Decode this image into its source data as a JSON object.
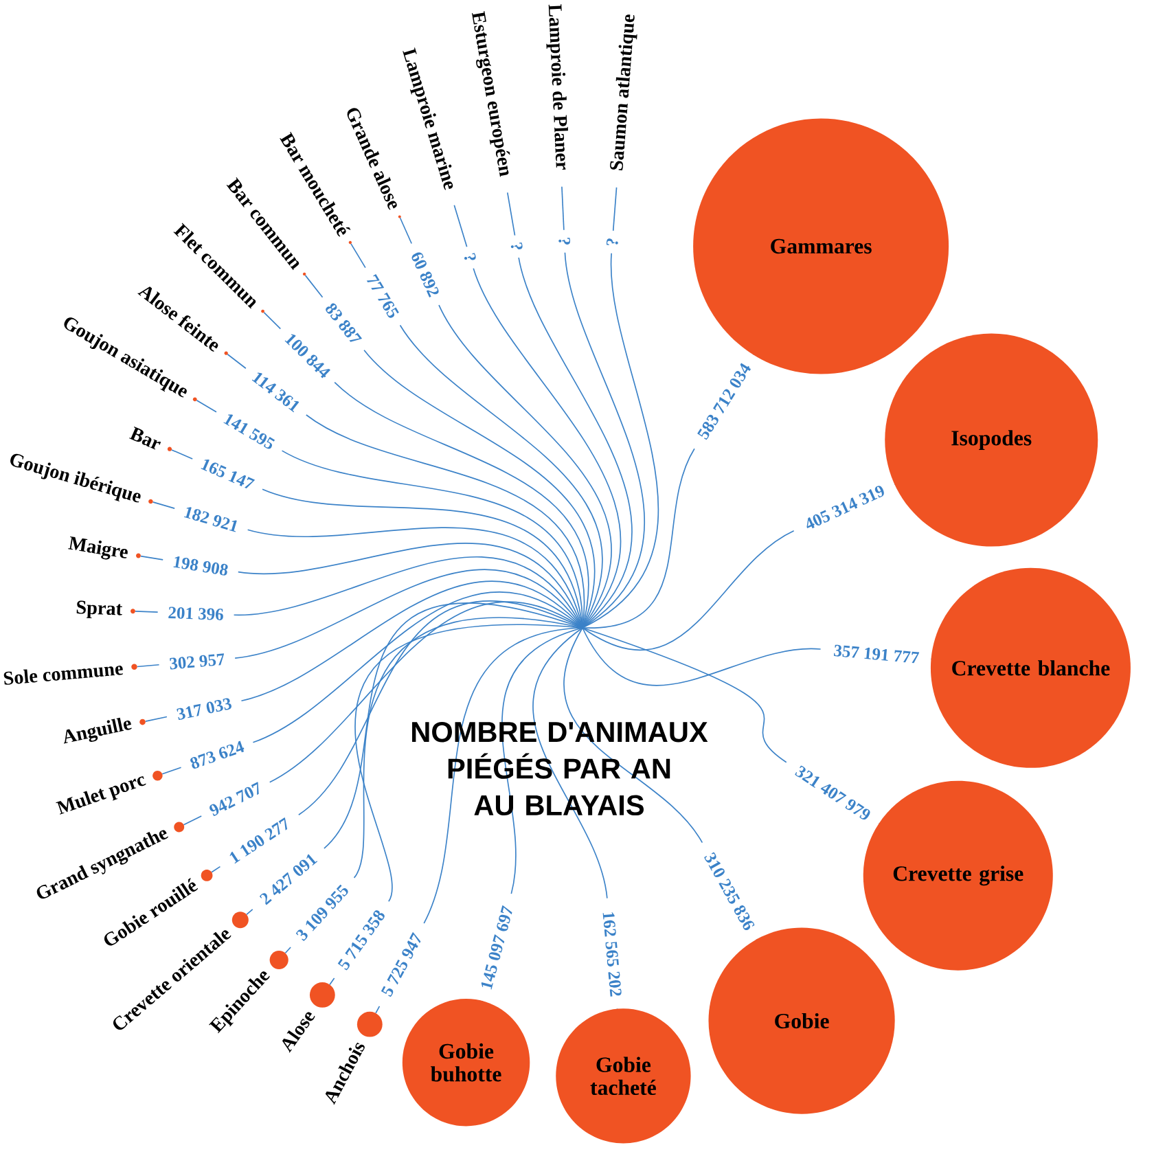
{
  "chart_data": {
    "type": "other",
    "title": "NOMBRE D'ANIMAUX PIÉGÉS PAR AN AU BLAYAIS",
    "color": "#f05323",
    "categories": [
      "Gammares",
      "Isopodes",
      "Crevette blanche",
      "Crevette grise",
      "Gobie",
      "Gobie tacheté",
      "Gobie buhotte",
      "Anchois",
      "Alose",
      "Epinoche",
      "Crevette orientale",
      "Gobie rouillé",
      "Grand syngnathe",
      "Mulet porc",
      "Anguille",
      "Sole commune",
      "Sprat",
      "Maigre",
      "Goujon ibérique",
      "Bar",
      "Goujon asiatique",
      "Alose feinte",
      "Flet commun",
      "Bar commun",
      "Bar moucheté",
      "Grande alose",
      "Lamproie marine",
      "Esturgeon européen",
      "Lamproie de Planer",
      "Saumon atlantique"
    ],
    "values": [
      583712034,
      405314319,
      357191777,
      321407979,
      310235836,
      162565202,
      145097697,
      5725947,
      5715358,
      3109955,
      2427091,
      1190277,
      942707,
      873624,
      317033,
      302957,
      201396,
      198908,
      182921,
      165147,
      141595,
      114361,
      100844,
      83887,
      77765,
      60892,
      null,
      null,
      null,
      null
    ],
    "value_labels": [
      "583 712 034",
      "405 314 319",
      "357 191 777",
      "321 407 979",
      "310 235 836",
      "162 565 202",
      "145 097 697",
      "5 725 947",
      "5 715 358",
      "3 109 955",
      "2 427 091",
      "1 190 277",
      "942 707",
      "873 624",
      "317 033",
      "302 957",
      "201 396",
      "198 908",
      "182 921",
      "165 147",
      "141 595",
      "114 361",
      "100 844",
      "83 887",
      "77 765",
      "60 892",
      "?",
      "?",
      "?",
      "?"
    ]
  }
}
